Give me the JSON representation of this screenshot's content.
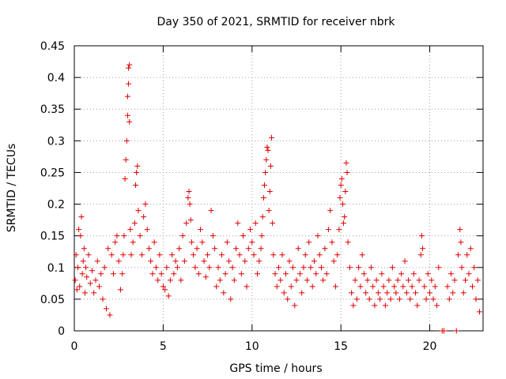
{
  "chart_data": {
    "type": "scatter",
    "title": "Day 350 of 2021, SRMTID for receiver nbrk",
    "xlabel": "GPS time / hours",
    "ylabel": "SRMTID / TECUs",
    "xlim": [
      0,
      23
    ],
    "ylim": [
      0,
      0.45
    ],
    "xticks": [
      0,
      5,
      10,
      15,
      20
    ],
    "xtick_labels": [
      "0",
      "5",
      "10",
      "15",
      "20"
    ],
    "yticks": [
      0,
      0.05,
      0.1,
      0.15,
      0.2,
      0.25,
      0.3,
      0.35,
      0.4,
      0.45
    ],
    "ytick_labels": [
      "0",
      "0.05",
      "0.1",
      "0.15",
      "0.2",
      "0.25",
      "0.3",
      "0.35",
      "0.4",
      "0.45"
    ],
    "grid": true,
    "marker": "plus",
    "color": "#e00000",
    "series": [
      {
        "name": "SRMTID nbrk",
        "points": [
          [
            0.05,
            0.08
          ],
          [
            0.1,
            0.12
          ],
          [
            0.15,
            0.065
          ],
          [
            0.2,
            0.1
          ],
          [
            0.25,
            0.16
          ],
          [
            0.3,
            0.07
          ],
          [
            0.35,
            0.15
          ],
          [
            0.4,
            0.18
          ],
          [
            0.45,
            0.09
          ],
          [
            0.5,
            0.11
          ],
          [
            0.55,
            0.13
          ],
          [
            0.6,
            0.06
          ],
          [
            0.65,
            0.1
          ],
          [
            0.7,
            0.085
          ],
          [
            0.8,
            0.12
          ],
          [
            0.9,
            0.075
          ],
          [
            1.0,
            0.095
          ],
          [
            1.1,
            0.06
          ],
          [
            1.2,
            0.08
          ],
          [
            1.3,
            0.11
          ],
          [
            1.4,
            0.07
          ],
          [
            1.5,
            0.09
          ],
          [
            1.6,
            0.05
          ],
          [
            1.7,
            0.1
          ],
          [
            1.8,
            0.035
          ],
          [
            1.9,
            0.13
          ],
          [
            2.0,
            0.025
          ],
          [
            2.1,
            0.12
          ],
          [
            2.2,
            0.09
          ],
          [
            2.3,
            0.14
          ],
          [
            2.4,
            0.15
          ],
          [
            2.5,
            0.11
          ],
          [
            2.6,
            0.065
          ],
          [
            2.7,
            0.09
          ],
          [
            2.75,
            0.12
          ],
          [
            2.8,
            0.15
          ],
          [
            2.85,
            0.24
          ],
          [
            2.9,
            0.27
          ],
          [
            2.95,
            0.3
          ],
          [
            3.0,
            0.34
          ],
          [
            3.0,
            0.37
          ],
          [
            3.05,
            0.39
          ],
          [
            3.05,
            0.415
          ],
          [
            3.1,
            0.42
          ],
          [
            3.1,
            0.33
          ],
          [
            3.15,
            0.16
          ],
          [
            3.2,
            0.12
          ],
          [
            3.3,
            0.14
          ],
          [
            3.4,
            0.17
          ],
          [
            3.45,
            0.23
          ],
          [
            3.5,
            0.25
          ],
          [
            3.55,
            0.26
          ],
          [
            3.6,
            0.19
          ],
          [
            3.7,
            0.15
          ],
          [
            3.8,
            0.12
          ],
          [
            3.9,
            0.18
          ],
          [
            4.0,
            0.2
          ],
          [
            4.1,
            0.16
          ],
          [
            4.2,
            0.13
          ],
          [
            4.3,
            0.11
          ],
          [
            4.4,
            0.09
          ],
          [
            4.5,
            0.14
          ],
          [
            4.6,
            0.1
          ],
          [
            4.7,
            0.08
          ],
          [
            4.8,
            0.12
          ],
          [
            4.9,
            0.09
          ],
          [
            5.0,
            0.07
          ],
          [
            5.1,
            0.065
          ],
          [
            5.2,
            0.1
          ],
          [
            5.3,
            0.055
          ],
          [
            5.4,
            0.08
          ],
          [
            5.5,
            0.12
          ],
          [
            5.6,
            0.09
          ],
          [
            5.7,
            0.11
          ],
          [
            5.8,
            0.1
          ],
          [
            5.9,
            0.13
          ],
          [
            6.0,
            0.08
          ],
          [
            6.1,
            0.15
          ],
          [
            6.2,
            0.11
          ],
          [
            6.3,
            0.17
          ],
          [
            6.4,
            0.21
          ],
          [
            6.45,
            0.22
          ],
          [
            6.5,
            0.2
          ],
          [
            6.55,
            0.175
          ],
          [
            6.6,
            0.14
          ],
          [
            6.7,
            0.12
          ],
          [
            6.8,
            0.1
          ],
          [
            6.9,
            0.13
          ],
          [
            7.0,
            0.09
          ],
          [
            7.1,
            0.16
          ],
          [
            7.2,
            0.14
          ],
          [
            7.3,
            0.11
          ],
          [
            7.4,
            0.085
          ],
          [
            7.5,
            0.12
          ],
          [
            7.6,
            0.1
          ],
          [
            7.7,
            0.19
          ],
          [
            7.8,
            0.15
          ],
          [
            7.9,
            0.13
          ],
          [
            8.0,
            0.07
          ],
          [
            8.1,
            0.1
          ],
          [
            8.2,
            0.08
          ],
          [
            8.3,
            0.12
          ],
          [
            8.4,
            0.06
          ],
          [
            8.5,
            0.09
          ],
          [
            8.6,
            0.14
          ],
          [
            8.7,
            0.11
          ],
          [
            8.8,
            0.05
          ],
          [
            8.9,
            0.1
          ],
          [
            9.0,
            0.08
          ],
          [
            9.1,
            0.13
          ],
          [
            9.2,
            0.17
          ],
          [
            9.3,
            0.12
          ],
          [
            9.4,
            0.09
          ],
          [
            9.5,
            0.15
          ],
          [
            9.6,
            0.11
          ],
          [
            9.7,
            0.07
          ],
          [
            9.8,
            0.13
          ],
          [
            9.9,
            0.16
          ],
          [
            10.0,
            0.14
          ],
          [
            10.1,
            0.12
          ],
          [
            10.2,
            0.17
          ],
          [
            10.3,
            0.09
          ],
          [
            10.4,
            0.11
          ],
          [
            10.5,
            0.13
          ],
          [
            10.55,
            0.15
          ],
          [
            10.6,
            0.18
          ],
          [
            10.65,
            0.21
          ],
          [
            10.7,
            0.23
          ],
          [
            10.75,
            0.25
          ],
          [
            10.8,
            0.27
          ],
          [
            10.85,
            0.29
          ],
          [
            10.9,
            0.285
          ],
          [
            10.95,
            0.19
          ],
          [
            11.0,
            0.22
          ],
          [
            11.05,
            0.26
          ],
          [
            11.1,
            0.305
          ],
          [
            11.15,
            0.17
          ],
          [
            11.2,
            0.12
          ],
          [
            11.3,
            0.09
          ],
          [
            11.4,
            0.07
          ],
          [
            11.5,
            0.1
          ],
          [
            11.6,
            0.08
          ],
          [
            11.7,
            0.12
          ],
          [
            11.8,
            0.06
          ],
          [
            11.9,
            0.09
          ],
          [
            12.0,
            0.05
          ],
          [
            12.1,
            0.11
          ],
          [
            12.2,
            0.07
          ],
          [
            12.3,
            0.1
          ],
          [
            12.4,
            0.04
          ],
          [
            12.5,
            0.08
          ],
          [
            12.6,
            0.13
          ],
          [
            12.7,
            0.09
          ],
          [
            12.8,
            0.06
          ],
          [
            12.9,
            0.1
          ],
          [
            13.0,
            0.12
          ],
          [
            13.1,
            0.08
          ],
          [
            13.2,
            0.14
          ],
          [
            13.3,
            0.1
          ],
          [
            13.4,
            0.07
          ],
          [
            13.5,
            0.11
          ],
          [
            13.6,
            0.09
          ],
          [
            13.7,
            0.15
          ],
          [
            13.8,
            0.12
          ],
          [
            13.9,
            0.1
          ],
          [
            14.0,
            0.08
          ],
          [
            14.1,
            0.13
          ],
          [
            14.2,
            0.09
          ],
          [
            14.3,
            0.16
          ],
          [
            14.4,
            0.19
          ],
          [
            14.5,
            0.14
          ],
          [
            14.6,
            0.11
          ],
          [
            14.7,
            0.07
          ],
          [
            14.8,
            0.12
          ],
          [
            14.9,
            0.16
          ],
          [
            14.95,
            0.21
          ],
          [
            15.0,
            0.23
          ],
          [
            15.05,
            0.24
          ],
          [
            15.1,
            0.2
          ],
          [
            15.15,
            0.17
          ],
          [
            15.2,
            0.18
          ],
          [
            15.25,
            0.22
          ],
          [
            15.3,
            0.265
          ],
          [
            15.35,
            0.25
          ],
          [
            15.4,
            0.14
          ],
          [
            15.5,
            0.1
          ],
          [
            15.6,
            0.06
          ],
          [
            15.7,
            0.04
          ],
          [
            15.8,
            0.08
          ],
          [
            15.9,
            0.05
          ],
          [
            16.0,
            0.1
          ],
          [
            16.1,
            0.07
          ],
          [
            16.2,
            0.12
          ],
          [
            16.3,
            0.09
          ],
          [
            16.4,
            0.06
          ],
          [
            16.5,
            0.08
          ],
          [
            16.6,
            0.05
          ],
          [
            16.7,
            0.1
          ],
          [
            16.8,
            0.07
          ],
          [
            16.9,
            0.04
          ],
          [
            17.0,
            0.08
          ],
          [
            17.1,
            0.06
          ],
          [
            17.2,
            0.05
          ],
          [
            17.3,
            0.09
          ],
          [
            17.4,
            0.07
          ],
          [
            17.5,
            0.04
          ],
          [
            17.6,
            0.06
          ],
          [
            17.7,
            0.08
          ],
          [
            17.8,
            0.05
          ],
          [
            17.9,
            0.1
          ],
          [
            18.0,
            0.07
          ],
          [
            18.1,
            0.06
          ],
          [
            18.2,
            0.08
          ],
          [
            18.3,
            0.05
          ],
          [
            18.4,
            0.09
          ],
          [
            18.5,
            0.07
          ],
          [
            18.6,
            0.11
          ],
          [
            18.7,
            0.06
          ],
          [
            18.8,
            0.08
          ],
          [
            18.9,
            0.05
          ],
          [
            19.0,
            0.07
          ],
          [
            19.1,
            0.09
          ],
          [
            19.2,
            0.06
          ],
          [
            19.3,
            0.04
          ],
          [
            19.4,
            0.08
          ],
          [
            19.5,
            0.12
          ],
          [
            19.55,
            0.15
          ],
          [
            19.6,
            0.13
          ],
          [
            19.7,
            0.07
          ],
          [
            19.8,
            0.05
          ],
          [
            19.9,
            0.09
          ],
          [
            20.0,
            0.06
          ],
          [
            20.1,
            0.08
          ],
          [
            20.2,
            0.05
          ],
          [
            20.3,
            0.07
          ],
          [
            20.4,
            0.04
          ],
          [
            20.5,
            0.1
          ],
          [
            20.7,
            0.0
          ],
          [
            20.8,
            0.0
          ],
          [
            21.0,
            0.07
          ],
          [
            21.1,
            0.05
          ],
          [
            21.2,
            0.09
          ],
          [
            21.3,
            0.06
          ],
          [
            21.4,
            0.08
          ],
          [
            21.5,
            0.0
          ],
          [
            21.6,
            0.12
          ],
          [
            21.7,
            0.16
          ],
          [
            21.75,
            0.14
          ],
          [
            21.8,
            0.1
          ],
          [
            21.9,
            0.06
          ],
          [
            22.0,
            0.08
          ],
          [
            22.1,
            0.12
          ],
          [
            22.2,
            0.09
          ],
          [
            22.3,
            0.13
          ],
          [
            22.4,
            0.07
          ],
          [
            22.5,
            0.1
          ],
          [
            22.6,
            0.05
          ],
          [
            22.7,
            0.08
          ],
          [
            22.8,
            0.03
          ]
        ]
      }
    ]
  }
}
